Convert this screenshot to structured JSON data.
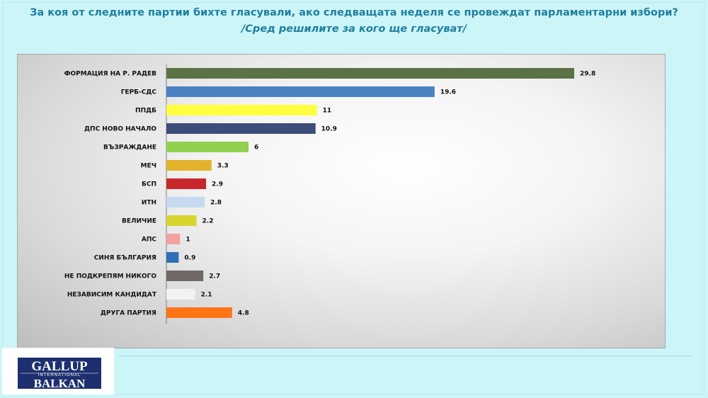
{
  "header": {
    "title": "За коя от следните партии бихте гласували, ако следващата неделя се провеждат парламентарни избори?",
    "subtitle": "/Сред решилите за кого ще гласуват/"
  },
  "logo": {
    "line1": "GALLUP",
    "line2": "INTERNATIONAL",
    "line3": "BALKAN"
  },
  "chart_data": {
    "type": "bar",
    "orientation": "horizontal",
    "title": "За коя от следните партии бихте гласували, ако следващата неделя се провеждат парламентарни избори?",
    "subtitle": "/Сред решилите за кого ще гласуват/",
    "xlabel": "",
    "ylabel": "",
    "xlim": [
      0,
      29.8
    ],
    "grid": false,
    "legend": "none",
    "categories": [
      "ФОРМАЦИЯ НА Р. РАДЕВ",
      "ГЕРБ-СДС",
      "ППДБ",
      "ДПС НОВО  НАЧАЛО",
      "ВЪЗРАЖДАНЕ",
      "МЕЧ",
      "БСП",
      "ИТН",
      "ВЕЛИЧИЕ",
      "АПС",
      "СИНЯ БЪЛГАРИЯ",
      "НЕ ПОДКРЕПЯМ НИКОГО",
      "НЕЗАВИСИМ КАНДИДАТ",
      "ДРУГА  ПАРТИЯ"
    ],
    "values": [
      29.8,
      19.6,
      11,
      10.9,
      6,
      3.3,
      2.9,
      2.8,
      2.2,
      1,
      0.9,
      2.7,
      2.1,
      4.8
    ],
    "value_labels": [
      "29.8",
      "19.6",
      "11",
      "10.9",
      "6",
      "3.3",
      "2.9",
      "2.8",
      "2.2",
      "1",
      "0.9",
      "2.7",
      "2.1",
      "4.8"
    ],
    "colors": [
      "#5b7344",
      "#4a82c2",
      "#ffff40",
      "#3d4d7a",
      "#92d050",
      "#e3b32c",
      "#c8282b",
      "#c5d9f1",
      "#d6d62e",
      "#f4a1a1",
      "#2e6fb7",
      "#706866",
      "#f2f2f2",
      "#ff7417"
    ]
  }
}
